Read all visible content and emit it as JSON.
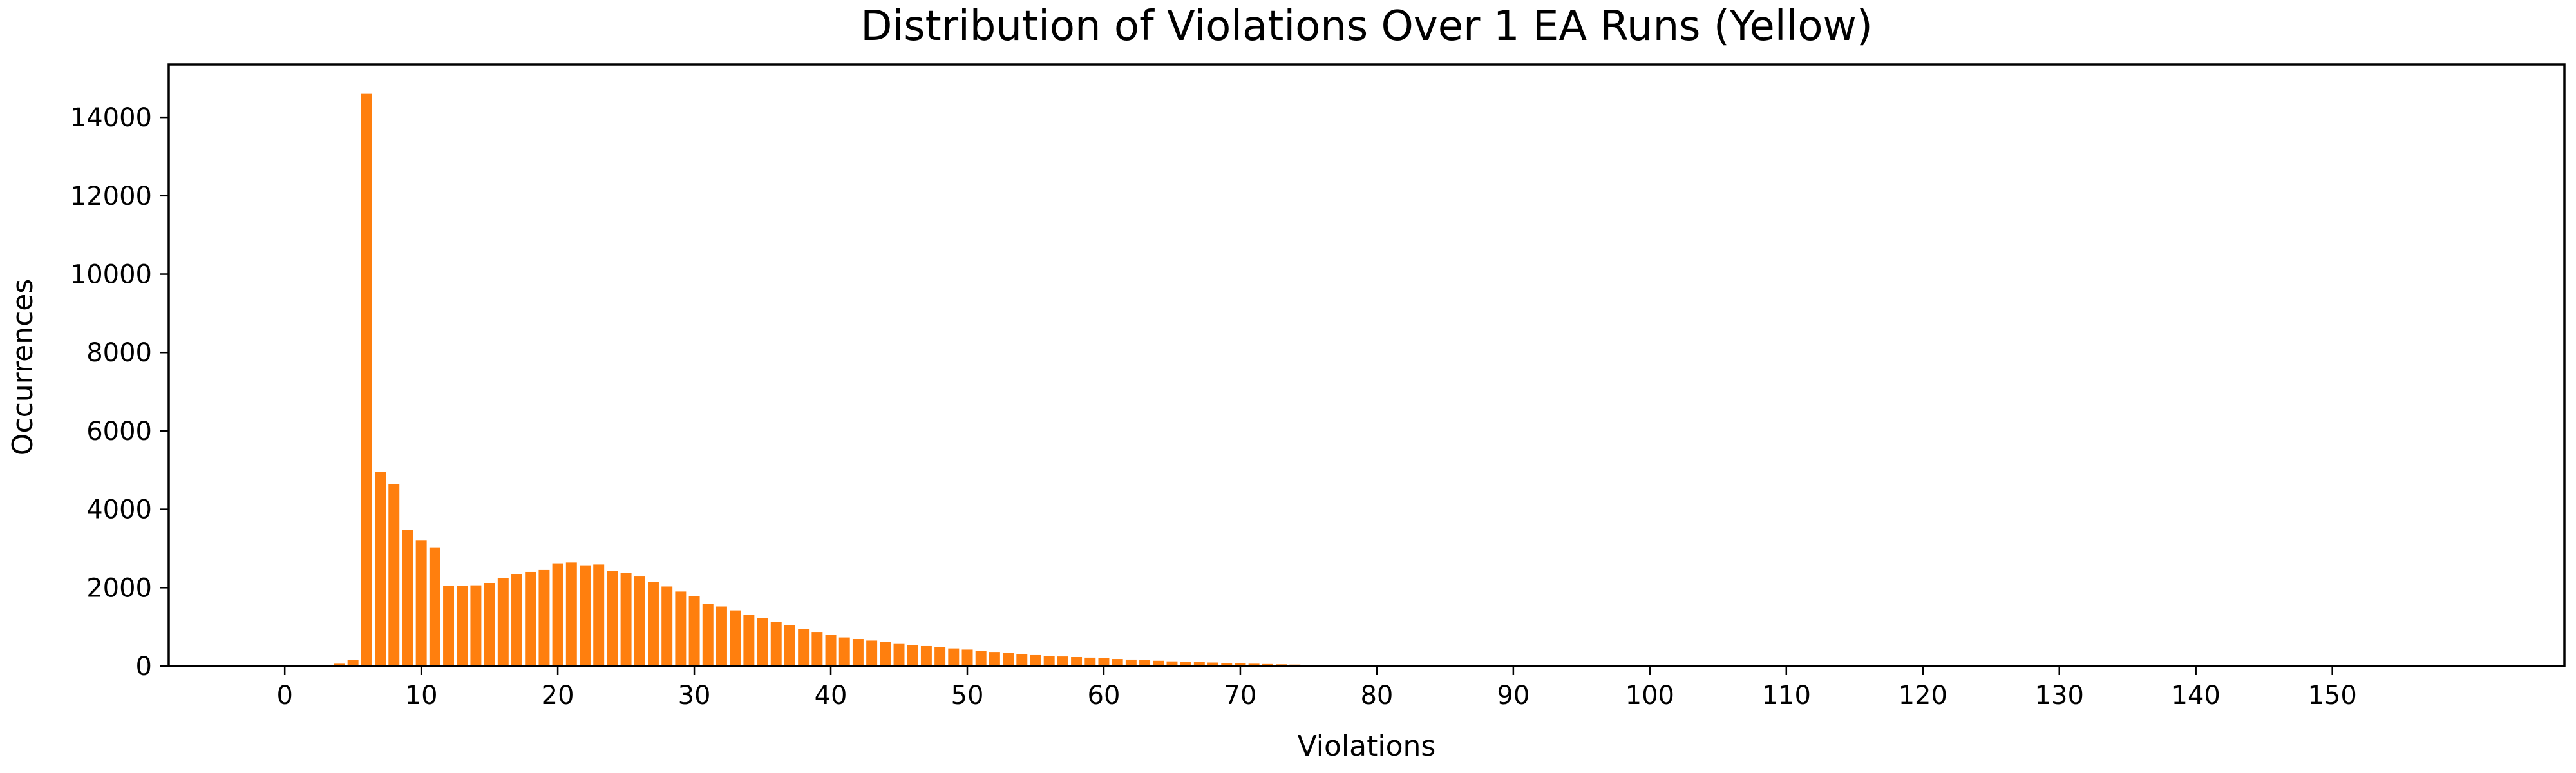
{
  "chart_data": {
    "type": "bar",
    "title": "Distribution of Violations Over 1 EA Runs (Yellow)",
    "xlabel": "Violations",
    "ylabel": "Occurrences",
    "xlim": [
      -8.5,
      167
    ],
    "ylim": [
      0,
      15350
    ],
    "xticks": [
      0,
      10,
      20,
      30,
      40,
      50,
      60,
      70,
      80,
      90,
      100,
      110,
      120,
      130,
      140,
      150
    ],
    "yticks": [
      0,
      2000,
      4000,
      6000,
      8000,
      10000,
      12000,
      14000
    ],
    "grid": false,
    "legend": "none",
    "bar_color": "#ff7f0e",
    "series": [
      {
        "x": [
          3,
          4,
          5,
          6,
          7,
          8,
          9,
          10,
          11,
          12,
          13,
          14,
          15,
          16,
          17,
          18,
          19,
          20,
          21,
          22,
          23,
          24,
          25,
          26,
          27,
          28,
          29,
          30,
          31,
          32,
          33,
          34,
          35,
          36,
          37,
          38,
          39,
          40,
          41,
          42,
          43,
          44,
          45,
          46,
          47,
          48,
          49,
          50,
          51,
          52,
          53,
          54,
          55,
          56,
          57,
          58,
          59,
          60,
          61,
          62,
          63,
          64,
          65,
          66,
          67,
          68,
          69,
          70,
          71,
          72,
          73,
          74,
          75,
          76,
          77,
          78,
          79,
          80,
          81,
          82
        ],
        "values": [
          20,
          60,
          150,
          14600,
          4950,
          4650,
          3480,
          3200,
          3030,
          2050,
          2050,
          2060,
          2120,
          2250,
          2350,
          2400,
          2450,
          2620,
          2640,
          2570,
          2590,
          2420,
          2380,
          2300,
          2150,
          2030,
          1900,
          1780,
          1580,
          1520,
          1420,
          1300,
          1230,
          1120,
          1040,
          950,
          870,
          790,
          730,
          690,
          650,
          610,
          580,
          540,
          510,
          480,
          450,
          420,
          390,
          360,
          330,
          300,
          280,
          260,
          245,
          230,
          215,
          200,
          180,
          165,
          150,
          135,
          120,
          110,
          100,
          90,
          80,
          70,
          60,
          52,
          45,
          38,
          32,
          26,
          21,
          17,
          13,
          10,
          7,
          5
        ]
      }
    ]
  }
}
